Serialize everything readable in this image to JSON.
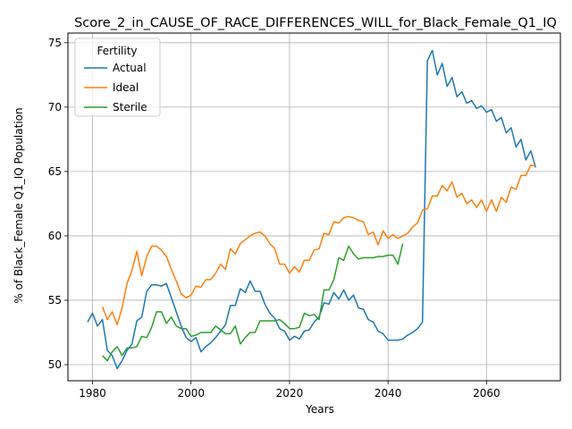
{
  "chart_data": {
    "type": "line",
    "title": "Score_2_in_CAUSE_OF_RACE_DIFFERENCES_WILL_for_Black_Female_Q1_IQ",
    "xlabel": "Years",
    "ylabel": "% of Black_Female Q1_IQ Population",
    "xlim": [
      1975,
      2075
    ],
    "ylim": [
      48.75,
      75.75
    ],
    "xticks": [
      1980,
      2000,
      2020,
      2040,
      2060
    ],
    "yticks": [
      50,
      55,
      60,
      65,
      70,
      75
    ],
    "grid": true,
    "legend": {
      "title": "Fertility",
      "position": "upper-left"
    },
    "series": [
      {
        "name": "Actual",
        "color": "#1f77b4",
        "x": [
          1979,
          1980,
          1981,
          1982,
          1983,
          1984,
          1985,
          1986,
          1987,
          1988,
          1989,
          1990,
          1991,
          1992,
          1993,
          1994,
          1995,
          1996,
          1997,
          1998,
          1999,
          2000,
          2001,
          2002,
          2003,
          2004,
          2005,
          2006,
          2007,
          2008,
          2009,
          2010,
          2011,
          2012,
          2013,
          2014,
          2015,
          2016,
          2017,
          2018,
          2019,
          2020,
          2021,
          2022,
          2023,
          2024,
          2025,
          2026,
          2027,
          2028,
          2029,
          2030,
          2031,
          2032,
          2033,
          2034,
          2035,
          2036,
          2037,
          2038,
          2039,
          2040,
          2041,
          2042,
          2043,
          2044,
          2045,
          2046,
          2047,
          2048,
          2049,
          2050,
          2051,
          2052,
          2053,
          2054,
          2055,
          2056,
          2057,
          2058,
          2059,
          2060,
          2061,
          2062,
          2063,
          2064,
          2065,
          2066,
          2067,
          2068,
          2069,
          2070
        ],
        "y": [
          53.3,
          54.0,
          53.0,
          53.5,
          51.1,
          50.7,
          49.7,
          50.3,
          51.1,
          51.6,
          53.4,
          53.7,
          55.7,
          56.2,
          56.2,
          56.1,
          56.3,
          55.2,
          54.1,
          53.0,
          52.1,
          51.8,
          52.1,
          51.0,
          51.4,
          51.7,
          52.1,
          52.6,
          53.1,
          54.6,
          54.6,
          55.9,
          55.6,
          56.5,
          55.7,
          55.7,
          54.7,
          54.0,
          53.6,
          52.8,
          52.6,
          51.9,
          52.2,
          52.0,
          52.6,
          52.7,
          53.3,
          53.7,
          54.8,
          54.7,
          55.6,
          55.1,
          55.8,
          55.0,
          55.4,
          54.4,
          54.3,
          53.5,
          53.3,
          52.6,
          52.4,
          51.9,
          51.9,
          51.9,
          52.0,
          52.3,
          52.5,
          52.8,
          53.3,
          73.6,
          74.4,
          72.5,
          73.4,
          71.6,
          72.3,
          70.8,
          71.2,
          70.3,
          70.5,
          69.9,
          70.1,
          69.6,
          69.8,
          68.9,
          69.2,
          68.0,
          68.4,
          66.9,
          67.5,
          65.9,
          66.6,
          65.3
        ]
      },
      {
        "name": "Ideal",
        "color": "#ff7f0e",
        "x": [
          1982,
          1983,
          1984,
          1985,
          1986,
          1987,
          1988,
          1989,
          1990,
          1991,
          1992,
          1993,
          1994,
          1995,
          1996,
          1997,
          1998,
          1999,
          2000,
          2001,
          2002,
          2003,
          2004,
          2005,
          2006,
          2007,
          2008,
          2009,
          2010,
          2011,
          2012,
          2013,
          2014,
          2015,
          2016,
          2017,
          2018,
          2019,
          2020,
          2021,
          2022,
          2023,
          2024,
          2025,
          2026,
          2027,
          2028,
          2029,
          2030,
          2031,
          2032,
          2033,
          2034,
          2035,
          2036,
          2037,
          2038,
          2039,
          2040,
          2041,
          2042,
          2043,
          2044,
          2045,
          2046,
          2047,
          2048,
          2049,
          2050,
          2051,
          2052,
          2053,
          2054,
          2055,
          2056,
          2057,
          2058,
          2059,
          2060,
          2061,
          2062,
          2063,
          2064,
          2065,
          2066,
          2067,
          2068,
          2069,
          2070
        ],
        "y": [
          54.5,
          53.5,
          54.1,
          53.1,
          54.4,
          56.3,
          57.3,
          58.8,
          56.9,
          58.4,
          59.2,
          59.2,
          58.9,
          58.4,
          57.4,
          56.5,
          55.5,
          55.2,
          55.4,
          56.1,
          56.0,
          56.6,
          56.6,
          57.1,
          57.8,
          57.4,
          59.0,
          58.6,
          59.4,
          59.7,
          60.0,
          60.2,
          60.3,
          60.0,
          59.4,
          59.0,
          57.8,
          57.8,
          57.1,
          57.6,
          57.2,
          58.1,
          58.1,
          58.9,
          59.0,
          60.2,
          60.1,
          61.1,
          61.0,
          61.4,
          61.5,
          61.4,
          61.2,
          61.1,
          60.1,
          60.3,
          59.3,
          60.4,
          59.8,
          60.1,
          59.8,
          60.0,
          60.2,
          60.7,
          61.0,
          62.0,
          62.1,
          63.1,
          63.1,
          63.9,
          63.5,
          64.2,
          63.0,
          63.3,
          62.5,
          62.8,
          62.2,
          62.8,
          61.9,
          62.8,
          61.9,
          63.0,
          62.6,
          63.8,
          63.6,
          64.7,
          64.7,
          65.5,
          65.4
        ]
      },
      {
        "name": "Sterile",
        "color": "#2ca02c",
        "x": [
          1982,
          1983,
          1984,
          1985,
          1986,
          1987,
          1988,
          1989,
          1990,
          1991,
          1992,
          1993,
          1994,
          1995,
          1996,
          1997,
          1998,
          1999,
          2000,
          2001,
          2002,
          2003,
          2004,
          2005,
          2006,
          2007,
          2008,
          2009,
          2010,
          2011,
          2012,
          2013,
          2014,
          2015,
          2016,
          2017,
          2018,
          2019,
          2020,
          2021,
          2022,
          2023,
          2024,
          2025,
          2026,
          2027,
          2028,
          2029,
          2030,
          2031,
          2032,
          2033,
          2034,
          2035,
          2036,
          2037,
          2038,
          2039,
          2040,
          2041,
          2042,
          2043
        ],
        "y": [
          50.7,
          50.3,
          51.0,
          51.4,
          50.7,
          51.3,
          51.3,
          51.4,
          52.2,
          52.1,
          52.9,
          54.1,
          54.1,
          53.2,
          53.7,
          53.0,
          52.8,
          52.8,
          52.2,
          52.3,
          52.5,
          52.5,
          52.5,
          53.0,
          52.7,
          52.4,
          52.4,
          53.0,
          51.6,
          52.1,
          52.5,
          52.5,
          53.4,
          53.4,
          53.4,
          53.4,
          53.5,
          53.2,
          52.8,
          52.8,
          52.9,
          54.0,
          53.8,
          53.9,
          53.5,
          55.8,
          55.8,
          56.6,
          58.3,
          58.1,
          59.2,
          58.6,
          58.2,
          58.3,
          58.3,
          58.3,
          58.4,
          58.4,
          58.5,
          58.5,
          57.8,
          59.4
        ]
      }
    ]
  }
}
